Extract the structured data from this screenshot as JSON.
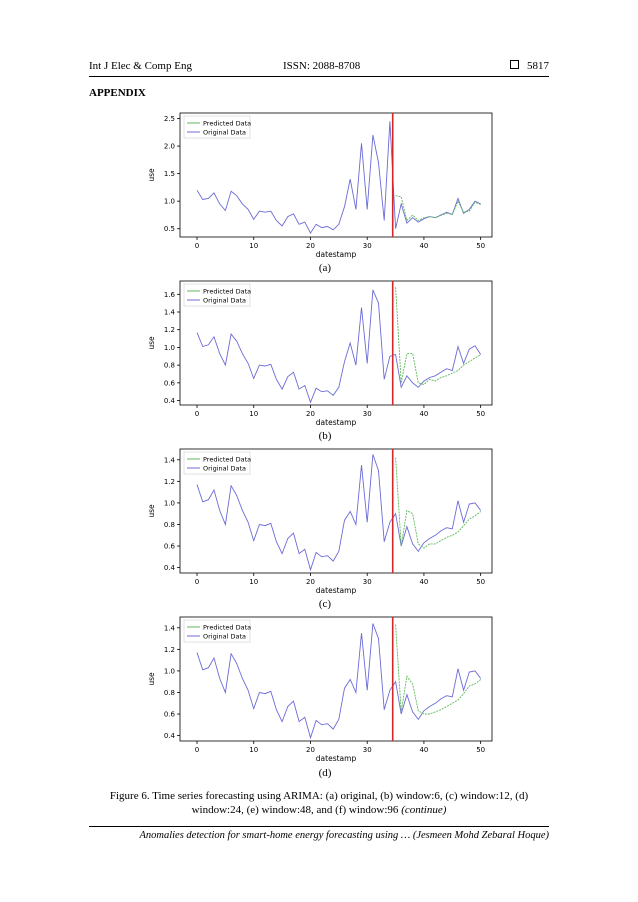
{
  "header": {
    "journal": "Int J Elec & Comp Eng",
    "issn": "ISSN: 2088-8708",
    "page": "5817"
  },
  "section_title": "APPENDIX",
  "caption": {
    "text": "Figure 6. Time series forecasting using ARIMA: (a) original, (b) window:6, (c) window:12, (d) window:24, (e) window:48, and (f) window:96",
    "continued": "(continue)"
  },
  "footer": "Anomalies detection for smart-home energy forecasting using … (Jesmeen Mohd Zebaral Hoque)",
  "colors": {
    "original": "#6b6bd6",
    "predicted": "#5cb85c",
    "split": "#d62728"
  },
  "chart_data": [
    {
      "label": "(a)",
      "type": "line",
      "xlabel": "datestamp",
      "ylabel": "use",
      "xlim": [
        -3,
        52
      ],
      "ylim": [
        0.35,
        2.6
      ],
      "split_x": 34.5,
      "xticks": [
        0,
        10,
        20,
        30,
        40,
        50
      ],
      "yticks": [
        0.5,
        1.0,
        1.5,
        2.0,
        2.5
      ],
      "ytick_labels": [
        "0.5",
        "1.0",
        "1.5",
        "2.0",
        "2.5"
      ],
      "legend": [
        "Predicted Data",
        "Original Data"
      ],
      "x_orig": [
        0,
        1,
        2,
        3,
        4,
        5,
        6,
        7,
        8,
        9,
        10,
        11,
        12,
        13,
        14,
        15,
        16,
        17,
        18,
        19,
        20,
        21,
        22,
        23,
        24,
        25,
        26,
        27,
        28,
        29,
        30,
        31,
        32,
        33,
        34,
        35,
        36,
        37,
        38,
        39,
        40,
        41,
        42,
        43,
        44,
        45,
        46,
        47,
        48,
        49,
        50
      ],
      "original": [
        1.2,
        1.03,
        1.05,
        1.15,
        0.95,
        0.83,
        1.18,
        1.1,
        0.95,
        0.85,
        0.67,
        0.82,
        0.8,
        0.82,
        0.65,
        0.55,
        0.72,
        0.77,
        0.58,
        0.62,
        0.42,
        0.58,
        0.52,
        0.54,
        0.48,
        0.58,
        0.9,
        1.4,
        0.85,
        2.05,
        0.85,
        2.2,
        1.7,
        0.65,
        2.45,
        0.5,
        0.95,
        0.6,
        0.7,
        0.62,
        0.68,
        0.72,
        0.7,
        0.75,
        0.8,
        0.76,
        1.05,
        0.78,
        0.85,
        1.0,
        0.95
      ],
      "x_pred": [
        35,
        36,
        37,
        38,
        39,
        40,
        41,
        42,
        43,
        44,
        45,
        46,
        47,
        48,
        49,
        50
      ],
      "predicted": [
        1.1,
        1.08,
        0.65,
        0.75,
        0.65,
        0.7,
        0.72,
        0.7,
        0.74,
        0.78,
        0.76,
        1.0,
        0.8,
        0.82,
        0.98,
        0.94
      ]
    },
    {
      "label": "(b)",
      "type": "line",
      "xlabel": "datestamp",
      "ylabel": "use",
      "xlim": [
        -3,
        52
      ],
      "ylim": [
        0.35,
        1.75
      ],
      "split_x": 34.5,
      "xticks": [
        0,
        10,
        20,
        30,
        40,
        50
      ],
      "yticks": [
        0.4,
        0.6,
        0.8,
        1.0,
        1.2,
        1.4,
        1.6
      ],
      "ytick_labels": [
        "0.4",
        "0.6",
        "0.8",
        "1.0",
        "1.2",
        "1.4",
        "1.6"
      ],
      "legend": [
        "Predicted Data",
        "Original Data"
      ],
      "x_orig": [
        0,
        1,
        2,
        3,
        4,
        5,
        6,
        7,
        8,
        9,
        10,
        11,
        12,
        13,
        14,
        15,
        16,
        17,
        18,
        19,
        20,
        21,
        22,
        23,
        24,
        25,
        26,
        27,
        28,
        29,
        30,
        31,
        32,
        33,
        34,
        35,
        36,
        37,
        38,
        39,
        40,
        41,
        42,
        43,
        44,
        45,
        46,
        47,
        48,
        49,
        50
      ],
      "original": [
        1.17,
        1.01,
        1.03,
        1.12,
        0.93,
        0.8,
        1.15,
        1.07,
        0.93,
        0.82,
        0.65,
        0.8,
        0.79,
        0.81,
        0.64,
        0.53,
        0.67,
        0.72,
        0.53,
        0.57,
        0.38,
        0.54,
        0.5,
        0.51,
        0.46,
        0.55,
        0.84,
        1.05,
        0.8,
        1.45,
        0.82,
        1.65,
        1.5,
        0.64,
        0.9,
        0.92,
        0.55,
        0.68,
        0.6,
        0.55,
        0.62,
        0.66,
        0.68,
        0.72,
        0.76,
        0.74,
        1.01,
        0.82,
        0.98,
        1.02,
        0.92
      ],
      "x_pred": [
        35,
        36,
        37,
        38,
        39,
        40,
        41,
        42,
        43,
        44,
        45,
        46,
        47,
        48,
        49,
        50
      ],
      "predicted": [
        1.68,
        0.6,
        0.93,
        0.93,
        0.6,
        0.58,
        0.64,
        0.62,
        0.66,
        0.68,
        0.71,
        0.74,
        0.8,
        0.84,
        0.88,
        0.92
      ]
    },
    {
      "label": "(c)",
      "type": "line",
      "xlabel": "datestamp",
      "ylabel": "use",
      "xlim": [
        -3,
        52
      ],
      "ylim": [
        0.35,
        1.5
      ],
      "split_x": 34.5,
      "xticks": [
        0,
        10,
        20,
        30,
        40,
        50
      ],
      "yticks": [
        0.4,
        0.6,
        0.8,
        1.0,
        1.2,
        1.4
      ],
      "ytick_labels": [
        "0.4",
        "0.6",
        "0.8",
        "1.0",
        "1.2",
        "1.4"
      ],
      "legend": [
        "Predicted Data",
        "Original Data"
      ],
      "x_orig": [
        0,
        1,
        2,
        3,
        4,
        5,
        6,
        7,
        8,
        9,
        10,
        11,
        12,
        13,
        14,
        15,
        16,
        17,
        18,
        19,
        20,
        21,
        22,
        23,
        24,
        25,
        26,
        27,
        28,
        29,
        30,
        31,
        32,
        33,
        34,
        35,
        36,
        37,
        38,
        39,
        40,
        41,
        42,
        43,
        44,
        45,
        46,
        47,
        48,
        49,
        50
      ],
      "original": [
        1.17,
        1.01,
        1.03,
        1.12,
        0.93,
        0.8,
        1.16,
        1.07,
        0.93,
        0.82,
        0.65,
        0.8,
        0.79,
        0.81,
        0.64,
        0.53,
        0.67,
        0.72,
        0.53,
        0.57,
        0.38,
        0.54,
        0.5,
        0.51,
        0.46,
        0.55,
        0.84,
        0.92,
        0.8,
        1.35,
        0.82,
        1.45,
        1.3,
        0.64,
        0.82,
        0.9,
        0.6,
        0.78,
        0.62,
        0.55,
        0.63,
        0.67,
        0.7,
        0.74,
        0.77,
        0.76,
        1.02,
        0.82,
        0.99,
        1.0,
        0.93
      ],
      "x_pred": [
        35,
        36,
        37,
        38,
        39,
        40,
        41,
        42,
        43,
        44,
        45,
        46,
        47,
        48,
        49,
        50
      ],
      "predicted": [
        1.42,
        0.6,
        0.93,
        0.9,
        0.62,
        0.58,
        0.62,
        0.62,
        0.65,
        0.68,
        0.7,
        0.73,
        0.79,
        0.85,
        0.88,
        0.92
      ]
    },
    {
      "label": "(d)",
      "type": "line",
      "xlabel": "datestamp",
      "ylabel": "use",
      "xlim": [
        -3,
        52
      ],
      "ylim": [
        0.35,
        1.5
      ],
      "split_x": 34.5,
      "xticks": [
        0,
        10,
        20,
        30,
        40,
        50
      ],
      "yticks": [
        0.4,
        0.6,
        0.8,
        1.0,
        1.2,
        1.4
      ],
      "ytick_labels": [
        "0.4",
        "0.6",
        "0.8",
        "1.0",
        "1.2",
        "1.4"
      ],
      "legend": [
        "Predicted Data",
        "Original Data"
      ],
      "x_orig": [
        0,
        1,
        2,
        3,
        4,
        5,
        6,
        7,
        8,
        9,
        10,
        11,
        12,
        13,
        14,
        15,
        16,
        17,
        18,
        19,
        20,
        21,
        22,
        23,
        24,
        25,
        26,
        27,
        28,
        29,
        30,
        31,
        32,
        33,
        34,
        35,
        36,
        37,
        38,
        39,
        40,
        41,
        42,
        43,
        44,
        45,
        46,
        47,
        48,
        49,
        50
      ],
      "original": [
        1.17,
        1.01,
        1.03,
        1.12,
        0.93,
        0.8,
        1.16,
        1.07,
        0.93,
        0.82,
        0.65,
        0.8,
        0.79,
        0.81,
        0.64,
        0.53,
        0.67,
        0.72,
        0.53,
        0.57,
        0.38,
        0.54,
        0.5,
        0.51,
        0.46,
        0.55,
        0.84,
        0.92,
        0.8,
        1.35,
        0.82,
        1.44,
        1.3,
        0.64,
        0.82,
        0.9,
        0.6,
        0.78,
        0.62,
        0.55,
        0.63,
        0.67,
        0.7,
        0.74,
        0.77,
        0.76,
        1.02,
        0.82,
        0.99,
        1.0,
        0.93
      ],
      "x_pred": [
        35,
        36,
        37,
        38,
        39,
        40,
        41,
        42,
        43,
        44,
        45,
        46,
        47,
        48,
        49,
        50
      ],
      "predicted": [
        1.43,
        0.62,
        0.95,
        0.88,
        0.63,
        0.6,
        0.6,
        0.62,
        0.64,
        0.67,
        0.7,
        0.73,
        0.79,
        0.86,
        0.88,
        0.92
      ]
    }
  ]
}
